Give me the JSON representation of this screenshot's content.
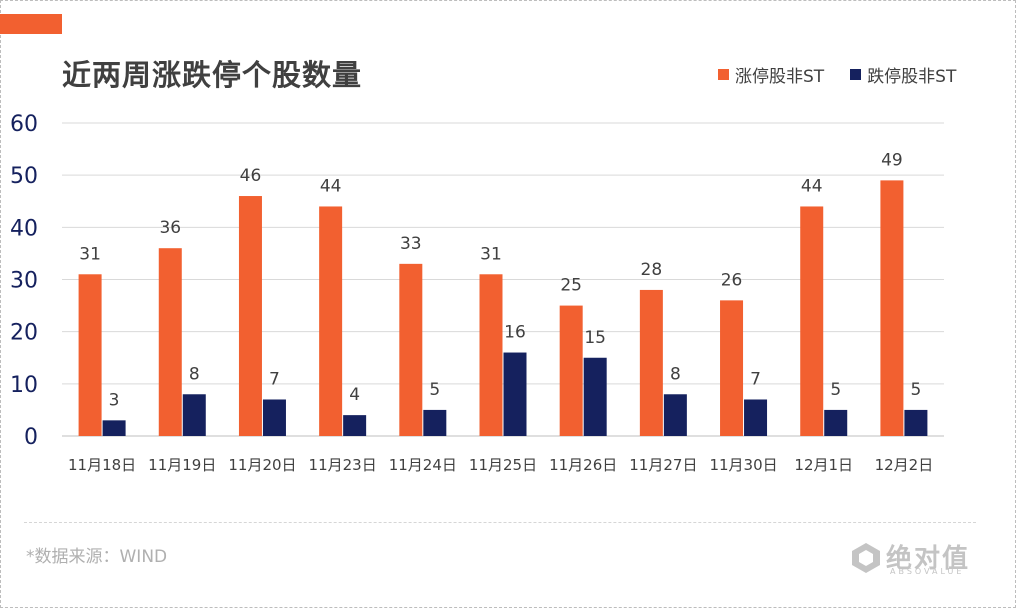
{
  "title": "近两周涨跌停个股数量",
  "source": "*数据来源：WIND",
  "logo": {
    "text": "绝对值",
    "sub": "ABSOVALUE",
    "icon": "logo-icon"
  },
  "colors": {
    "accent": "#f26030",
    "series1": "#f26030",
    "series2": "#15215e",
    "grid": "#d9d9d9",
    "axis_text": "#15215e"
  },
  "chart_data": {
    "type": "bar",
    "title": "近两周涨跌停个股数量",
    "categories": [
      "11月18日",
      "11月19日",
      "11月20日",
      "11月23日",
      "11月24日",
      "11月25日",
      "11月26日",
      "11月27日",
      "11月30日",
      "12月1日",
      "12月2日"
    ],
    "series": [
      {
        "name": "涨停股非ST",
        "values": [
          31,
          36,
          46,
          44,
          33,
          31,
          25,
          28,
          26,
          44,
          49
        ]
      },
      {
        "name": "跌停股非ST",
        "values": [
          3,
          8,
          7,
          4,
          5,
          16,
          15,
          8,
          7,
          5,
          5
        ]
      }
    ],
    "ylim": [
      0,
      60
    ],
    "yticks": [
      0,
      10,
      20,
      30,
      40,
      50,
      60
    ],
    "grid": true,
    "legend": "top-right",
    "data_labels": true
  }
}
